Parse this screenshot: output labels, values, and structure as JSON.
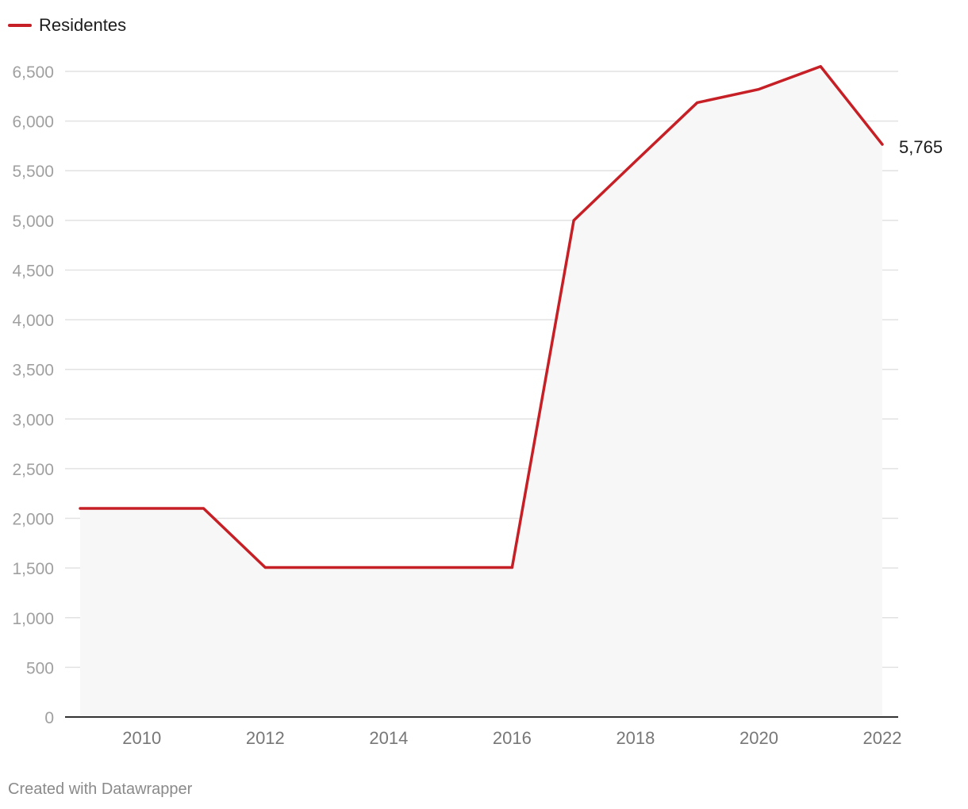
{
  "legend": {
    "label": "Residentes"
  },
  "footer": {
    "credit": "Created with Datawrapper"
  },
  "colors": {
    "line": "#c62026",
    "area": "#f7f7f7",
    "grid": "#e2e2e2",
    "axis_baseline": "#333333",
    "tick_label": "#a0a0a0",
    "x_tick_label": "#777777",
    "end_label": "#1d1d1d"
  },
  "chart_data": {
    "type": "line",
    "title": "",
    "xlabel": "",
    "ylabel": "",
    "x": [
      2009,
      2010,
      2011,
      2012,
      2013,
      2014,
      2015,
      2016,
      2017,
      2018,
      2019,
      2020,
      2021,
      2022
    ],
    "series": [
      {
        "name": "Residentes",
        "values": [
          2100,
          2100,
          2100,
          1505,
          1505,
          1505,
          1505,
          1505,
          5000,
          5595,
          6185,
          6320,
          6550,
          5765
        ]
      }
    ],
    "ylim": [
      0,
      6500
    ],
    "xlim": [
      2009,
      2022
    ],
    "y_ticks": [
      0,
      500,
      1000,
      1500,
      2000,
      2500,
      3000,
      3500,
      4000,
      4500,
      5000,
      5500,
      6000,
      6500
    ],
    "y_tick_labels": [
      "0",
      "500",
      "1,000",
      "1,500",
      "2,000",
      "2,500",
      "3,000",
      "3,500",
      "4,000",
      "4,500",
      "5,000",
      "5,500",
      "6,000",
      "6,500"
    ],
    "x_ticks": [
      2010,
      2012,
      2014,
      2016,
      2018,
      2020,
      2022
    ],
    "x_tick_labels": [
      "2010",
      "2012",
      "2014",
      "2016",
      "2018",
      "2020",
      "2022"
    ],
    "end_label": "5,765",
    "grid": true,
    "legend_position": "top-left"
  }
}
